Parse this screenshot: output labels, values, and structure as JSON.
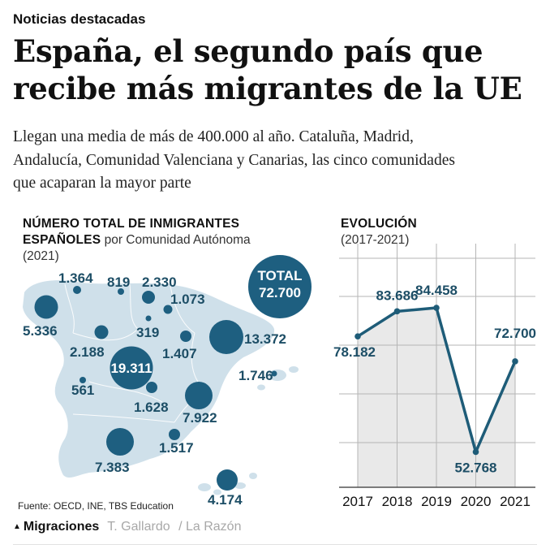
{
  "kicker": "Noticias destacadas",
  "title": [
    "España, el segundo país que",
    "recibe más migrantes de la UE"
  ],
  "subtitle": [
    "Llegan una media de más de 400.000 al año. Cataluña, Madrid,",
    "Andalucía, Comunidad Valenciana y Canarias, las cinco comunidades",
    "que acaparan la mayor parte"
  ],
  "map": {
    "heading_bold_1": "NÚMERO TOTAL DE INMIGRANTES",
    "heading_bold_2": "ESPAÑOLES",
    "heading_light": "por Comunidad Autónoma",
    "year": "(2021)",
    "total_label": "TOTAL",
    "total_value": "72.700"
  },
  "evolution": {
    "heading": "EVOLUCIÓN",
    "period": "(2017-2021)"
  },
  "colors": {
    "bubble": "#1e5f80",
    "map_fill": "#cfe0ea",
    "line": "#1e5c78",
    "area": "#e9e9e9",
    "grid": "#b5b5b5"
  },
  "chart_data": [
    {
      "type": "bubble-map",
      "title": "NÚMERO TOTAL DE INMIGRANTES ESPAÑOLES por Comunidad Autónoma (2021)",
      "total": "72.700",
      "regions": [
        {
          "name": "Galicia",
          "value": 5336,
          "label": "5.336"
        },
        {
          "name": "Asturias",
          "value": 1364,
          "label": "1.364"
        },
        {
          "name": "Cantabria",
          "value": 819,
          "label": "819"
        },
        {
          "name": "País Vasco",
          "value": 2330,
          "label": "2.330"
        },
        {
          "name": "Navarra",
          "value": 1073,
          "label": "1.073"
        },
        {
          "name": "La Rioja",
          "value": 319,
          "label": "319"
        },
        {
          "name": "Castilla y León",
          "value": 2188,
          "label": "2.188"
        },
        {
          "name": "Aragón",
          "value": 1407,
          "label": "1.407"
        },
        {
          "name": "Cataluña",
          "value": 13372,
          "label": "13.372"
        },
        {
          "name": "Madrid",
          "value": 19311,
          "label": "19.311"
        },
        {
          "name": "Baleares",
          "value": 1746,
          "label": "1.746"
        },
        {
          "name": "Extremadura",
          "value": 561,
          "label": "561"
        },
        {
          "name": "Castilla-La Mancha",
          "value": 1628,
          "label": "1.628"
        },
        {
          "name": "Comunidad Valenciana",
          "value": 7922,
          "label": "7.922"
        },
        {
          "name": "Murcia",
          "value": 1517,
          "label": "1.517"
        },
        {
          "name": "Andalucía",
          "value": 7383,
          "label": "7.383"
        },
        {
          "name": "Canarias",
          "value": 4174,
          "label": "4.174"
        }
      ]
    },
    {
      "type": "line",
      "title": "EVOLUCIÓN (2017-2021)",
      "x": [
        "2017",
        "2018",
        "2019",
        "2020",
        "2021"
      ],
      "values": [
        78182,
        83686,
        84458,
        52768,
        72700
      ],
      "labels": [
        "78.182",
        "83.686",
        "84.458",
        "52.768",
        "72.700"
      ],
      "ylim": [
        45000,
        95000
      ]
    }
  ],
  "source": "Fuente: OECD, INE, TBS Education",
  "footer": {
    "tag": "Migraciones",
    "author": "T. Gallardo",
    "outlet": "/ La Razón"
  }
}
